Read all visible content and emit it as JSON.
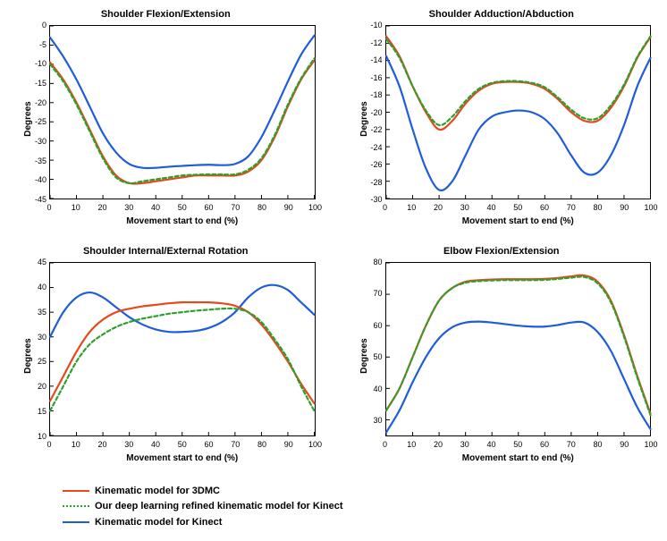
{
  "colors": {
    "series_3dmc": "#e34a1c",
    "series_dl": "#2ca02c",
    "series_kinect": "#1f5cd8",
    "axis": "#000000",
    "tick": "#000000",
    "background": "#ffffff"
  },
  "styles": {
    "line_width": 2.2,
    "dl_dash": "4,3",
    "title_fontsize": 11,
    "label_fontsize": 10,
    "tick_fontsize": 9
  },
  "x_axis": {
    "label": "Movement start to end (%)",
    "lim": [
      0,
      100
    ],
    "ticks": [
      0,
      10,
      20,
      30,
      40,
      50,
      60,
      70,
      80,
      90,
      100
    ]
  },
  "legend": {
    "items": [
      {
        "key": "series_3dmc",
        "style": "solid",
        "label": "Kinematic model for 3DMC"
      },
      {
        "key": "series_dl",
        "style": "dotted",
        "label": "Our deep learning refined kinematic model for Kinect"
      },
      {
        "key": "series_kinect",
        "style": "solid",
        "label": "Kinematic model for Kinect"
      }
    ]
  },
  "charts": [
    {
      "id": "shoulder-flexion",
      "title": "Shoulder Flexion/Extension",
      "ylabel": "Degrees",
      "ylim": [
        -45,
        0
      ],
      "yticks": [
        -45,
        -40,
        -35,
        -30,
        -25,
        -20,
        -15,
        -10,
        -5,
        0
      ],
      "series": {
        "series_3dmc": {
          "x": [
            0,
            5,
            10,
            15,
            20,
            25,
            30,
            35,
            40,
            45,
            50,
            55,
            60,
            65,
            70,
            75,
            80,
            85,
            90,
            95,
            100
          ],
          "y": [
            -9.5,
            -14,
            -20,
            -27,
            -34,
            -39,
            -41,
            -41,
            -40.5,
            -40,
            -39.5,
            -39,
            -39,
            -39,
            -39,
            -38,
            -35,
            -29,
            -21,
            -14,
            -9
          ]
        },
        "series_dl": {
          "x": [
            0,
            5,
            10,
            15,
            20,
            25,
            30,
            35,
            40,
            45,
            50,
            55,
            60,
            65,
            70,
            75,
            80,
            85,
            90,
            95,
            100
          ],
          "y": [
            -10,
            -14.5,
            -20.5,
            -27.5,
            -34.5,
            -39.5,
            -41,
            -40.5,
            -40,
            -39.5,
            -39,
            -38.8,
            -38.7,
            -38.7,
            -38.7,
            -37.5,
            -34.5,
            -28.5,
            -20.5,
            -13.7,
            -8.5
          ]
        },
        "series_kinect": {
          "x": [
            0,
            5,
            10,
            15,
            20,
            25,
            30,
            35,
            40,
            45,
            50,
            55,
            60,
            65,
            70,
            75,
            80,
            85,
            90,
            95,
            100
          ],
          "y": [
            -3,
            -8,
            -14,
            -21,
            -28,
            -33,
            -36,
            -37,
            -37,
            -36.7,
            -36.5,
            -36.3,
            -36.2,
            -36.3,
            -36,
            -34,
            -29,
            -22,
            -14.5,
            -7.5,
            -2.5
          ]
        }
      }
    },
    {
      "id": "shoulder-adduction",
      "title": "Shoulder Adduction/Abduction",
      "ylabel": "Degrees",
      "ylim": [
        -30,
        -10
      ],
      "yticks": [
        -30,
        -28,
        -26,
        -24,
        -22,
        -20,
        -18,
        -16,
        -14,
        -12,
        -10
      ],
      "series": {
        "series_3dmc": {
          "x": [
            0,
            5,
            10,
            15,
            20,
            25,
            30,
            35,
            40,
            45,
            50,
            55,
            60,
            65,
            70,
            75,
            80,
            85,
            90,
            95,
            100
          ],
          "y": [
            -11.2,
            -13.5,
            -17,
            -20,
            -22,
            -21,
            -19,
            -17.5,
            -16.7,
            -16.5,
            -16.5,
            -16.7,
            -17.3,
            -18.5,
            -20,
            -21,
            -21,
            -19.5,
            -17,
            -13.7,
            -11.3
          ]
        },
        "series_dl": {
          "x": [
            0,
            5,
            10,
            15,
            20,
            25,
            30,
            35,
            40,
            45,
            50,
            55,
            60,
            65,
            70,
            75,
            80,
            85,
            90,
            95,
            100
          ],
          "y": [
            -11.5,
            -13.7,
            -17,
            -19.8,
            -21.5,
            -20.5,
            -18.7,
            -17.3,
            -16.6,
            -16.4,
            -16.4,
            -16.6,
            -17.1,
            -18.3,
            -19.7,
            -20.7,
            -20.7,
            -19.2,
            -16.8,
            -13.6,
            -11.2
          ]
        },
        "series_kinect": {
          "x": [
            0,
            5,
            10,
            15,
            20,
            25,
            30,
            35,
            40,
            45,
            50,
            55,
            60,
            65,
            70,
            75,
            80,
            85,
            90,
            95,
            100
          ],
          "y": [
            -13.5,
            -17,
            -22,
            -26.5,
            -29,
            -28,
            -25,
            -22,
            -20.5,
            -20,
            -19.8,
            -20,
            -20.8,
            -22.5,
            -25,
            -27,
            -27,
            -25,
            -21.5,
            -17,
            -13.7
          ]
        }
      }
    },
    {
      "id": "shoulder-rotation",
      "title": "Shoulder Internal/External Rotation",
      "ylabel": "Degrees",
      "ylim": [
        10,
        45
      ],
      "yticks": [
        10,
        15,
        20,
        25,
        30,
        35,
        40,
        45
      ],
      "series": {
        "series_3dmc": {
          "x": [
            0,
            5,
            10,
            15,
            20,
            25,
            30,
            35,
            40,
            45,
            50,
            55,
            60,
            65,
            70,
            75,
            80,
            85,
            90,
            95,
            100
          ],
          "y": [
            17,
            22,
            27,
            31,
            33.5,
            35,
            35.7,
            36.2,
            36.5,
            36.8,
            37,
            37,
            37,
            36.8,
            36.3,
            35,
            32.5,
            29,
            25,
            20.5,
            16.5
          ]
        },
        "series_dl": {
          "x": [
            0,
            5,
            10,
            15,
            20,
            25,
            30,
            35,
            40,
            45,
            50,
            55,
            60,
            65,
            70,
            75,
            80,
            85,
            90,
            95,
            100
          ],
          "y": [
            15,
            20,
            25,
            28.5,
            30.5,
            32,
            33,
            33.7,
            34.2,
            34.7,
            35,
            35.3,
            35.5,
            35.7,
            35.7,
            35,
            33,
            29.5,
            25.5,
            20,
            15
          ]
        },
        "series_kinect": {
          "x": [
            0,
            5,
            10,
            15,
            20,
            25,
            30,
            35,
            40,
            45,
            50,
            55,
            60,
            65,
            70,
            75,
            80,
            85,
            90,
            95,
            100
          ],
          "y": [
            30,
            35,
            38,
            39,
            38,
            36,
            34,
            32.5,
            31.5,
            31,
            31,
            31.2,
            31.8,
            33,
            35,
            38,
            40,
            40.5,
            39.5,
            37,
            34.5
          ]
        }
      }
    },
    {
      "id": "elbow-flexion",
      "title": "Elbow Flexion/Extension",
      "ylabel": "Degrees",
      "ylim": [
        25,
        80
      ],
      "yticks": [
        30,
        40,
        50,
        60,
        70,
        80
      ],
      "series": {
        "series_3dmc": {
          "x": [
            0,
            5,
            10,
            15,
            20,
            25,
            30,
            35,
            40,
            45,
            50,
            55,
            60,
            65,
            70,
            75,
            80,
            85,
            90,
            95,
            100
          ],
          "y": [
            33,
            40,
            50,
            60,
            68,
            72,
            74,
            74.5,
            74.7,
            74.8,
            74.8,
            74.8,
            74.9,
            75.2,
            75.7,
            76,
            74,
            68,
            57,
            44,
            32
          ]
        },
        "series_dl": {
          "x": [
            0,
            5,
            10,
            15,
            20,
            25,
            30,
            35,
            40,
            45,
            50,
            55,
            60,
            65,
            70,
            75,
            80,
            85,
            90,
            95,
            100
          ],
          "y": [
            33,
            40,
            50,
            60,
            68,
            72,
            73.7,
            74.2,
            74.4,
            74.5,
            74.5,
            74.5,
            74.6,
            74.9,
            75.3,
            75.5,
            73.5,
            67.5,
            56.5,
            43.5,
            31.5
          ]
        },
        "series_kinect": {
          "x": [
            0,
            5,
            10,
            15,
            20,
            25,
            30,
            35,
            40,
            45,
            50,
            55,
            60,
            65,
            70,
            75,
            80,
            85,
            90,
            95,
            100
          ],
          "y": [
            26,
            33,
            42,
            50,
            56,
            59.5,
            61,
            61.3,
            61,
            60.5,
            60,
            59.7,
            59.7,
            60.2,
            61,
            61,
            58,
            52,
            43,
            34,
            27
          ]
        }
      }
    }
  ]
}
